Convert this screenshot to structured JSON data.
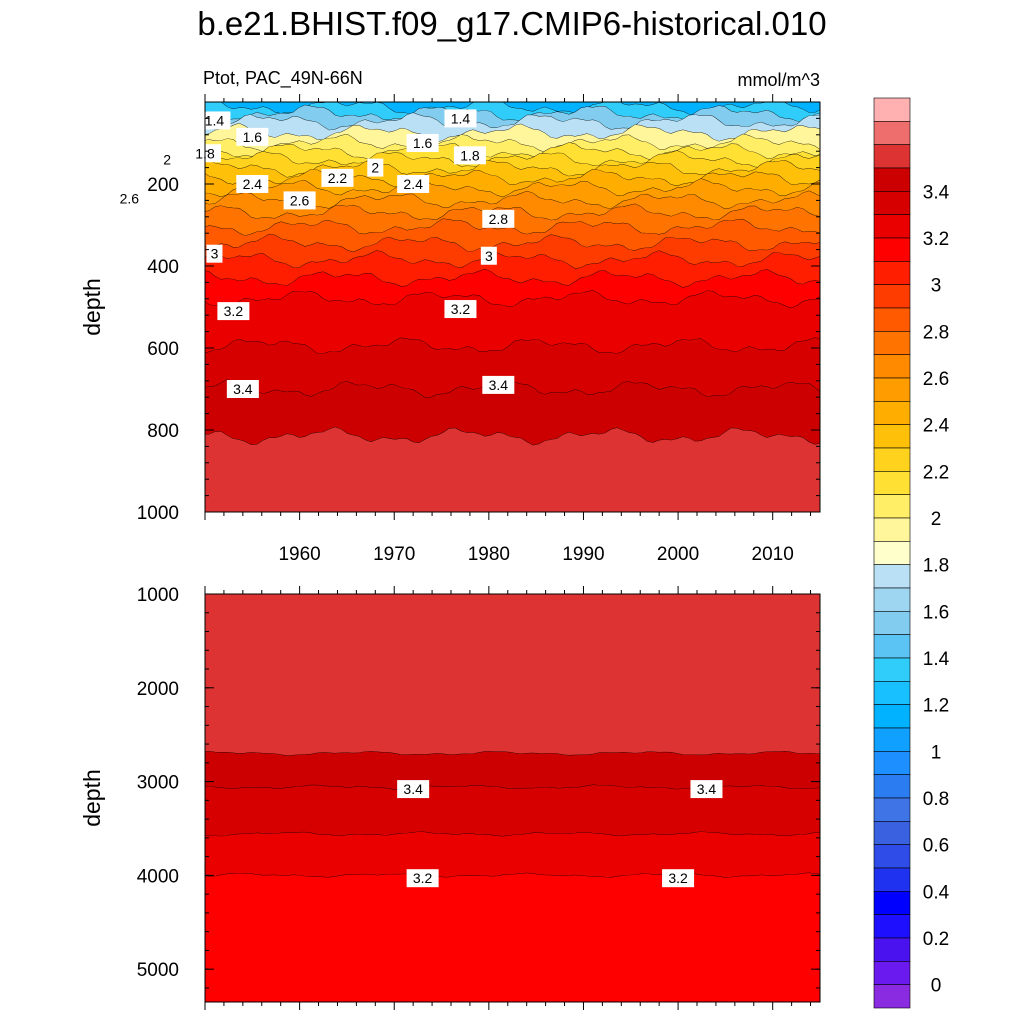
{
  "title": "b.e21.BHIST.f09_g17.CMIP6-historical.010",
  "chart_data": {
    "type": "contour",
    "left_label": "Ptot, PAC_49N-66N",
    "right_label": "mmol/m^3",
    "x_ticks": [
      "1960",
      "1970",
      "1980",
      "1990",
      "2000",
      "2010"
    ],
    "x_range": [
      1950,
      2015
    ],
    "colorbar": {
      "labels": [
        "0",
        "0.2",
        "0.4",
        "0.6",
        "0.8",
        "1",
        "1.2",
        "1.4",
        "1.6",
        "1.8",
        "2",
        "2.2",
        "2.4",
        "2.6",
        "2.8",
        "3",
        "3.2",
        "3.4"
      ],
      "levels": [
        0,
        0.1,
        0.2,
        0.3,
        0.4,
        0.5,
        0.6,
        0.7,
        0.8,
        0.9,
        1.0,
        1.1,
        1.2,
        1.3,
        1.4,
        1.5,
        1.6,
        1.7,
        1.8,
        1.9,
        2.0,
        2.1,
        2.2,
        2.3,
        2.4,
        2.5,
        2.6,
        2.7,
        2.8,
        2.9,
        3.0,
        3.1,
        3.2,
        3.3,
        3.4,
        3.5,
        3.6
      ],
      "colors": [
        "#8a2be2",
        "#6a1aee",
        "#4b12f0",
        "#1e10ff",
        "#0000ff",
        "#1e32f0",
        "#2f4be8",
        "#3a62e0",
        "#3f74e6",
        "#2b7cf0",
        "#1e8fff",
        "#10a0ff",
        "#00b2ff",
        "#18c0ff",
        "#30ccfa",
        "#5cc4f4",
        "#82cdef",
        "#9ed6f2",
        "#b9e0f4",
        "#ffffcc",
        "#fff59a",
        "#ffee66",
        "#ffe033",
        "#ffd21e",
        "#ffc00a",
        "#ffae00",
        "#ff9c00",
        "#ff8a00",
        "#ff7300",
        "#ff5a00",
        "#ff3c00",
        "#ff1e00",
        "#ff0000",
        "#eb0000",
        "#d70000",
        "#cc0000",
        "#dd3333",
        "#ee6e6e",
        "#ffb0b0"
      ]
    },
    "panels": [
      {
        "id": "upper",
        "ylabel": "depth",
        "y_range": [
          0,
          1000
        ],
        "y_ticks": [
          "200",
          "400",
          "600",
          "800",
          "1000"
        ],
        "bands": [
          {
            "top": 0,
            "bottom": 12,
            "value": 1.1
          },
          {
            "top": 12,
            "bottom": 28,
            "value": 1.3
          },
          {
            "top": 28,
            "bottom": 48,
            "value": 1.5
          },
          {
            "top": 48,
            "bottom": 75,
            "value": 1.7
          },
          {
            "top": 75,
            "bottom": 100,
            "value": 1.9
          },
          {
            "top": 100,
            "bottom": 120,
            "value": 2.0
          },
          {
            "top": 120,
            "bottom": 140,
            "value": 2.1
          },
          {
            "top": 140,
            "bottom": 162,
            "value": 2.2
          },
          {
            "top": 162,
            "bottom": 185,
            "value": 2.3
          },
          {
            "top": 185,
            "bottom": 210,
            "value": 2.4
          },
          {
            "top": 210,
            "bottom": 240,
            "value": 2.5
          },
          {
            "top": 240,
            "bottom": 270,
            "value": 2.6
          },
          {
            "top": 270,
            "bottom": 305,
            "value": 2.7
          },
          {
            "top": 305,
            "bottom": 345,
            "value": 2.8
          },
          {
            "top": 345,
            "bottom": 385,
            "value": 2.9
          },
          {
            "top": 385,
            "bottom": 430,
            "value": 3.0
          },
          {
            "top": 430,
            "bottom": 480,
            "value": 3.1
          },
          {
            "top": 480,
            "bottom": 595,
            "value": 3.2
          },
          {
            "top": 595,
            "bottom": 700,
            "value": 3.3
          },
          {
            "top": 700,
            "bottom": 815,
            "value": 3.4
          },
          {
            "top": 815,
            "bottom": 1000,
            "value": 3.5
          }
        ],
        "contour_labels": [
          {
            "text": "1.4",
            "x": 1951,
            "y": 45
          },
          {
            "text": "1.6",
            "x": 1955,
            "y": 85
          },
          {
            "text": "1.8",
            "x": 1950,
            "y": 125
          },
          {
            "text": "2",
            "x": 1946,
            "y": 140
          },
          {
            "text": "2.4",
            "x": 1955,
            "y": 200
          },
          {
            "text": "2.6",
            "x": 1942,
            "y": 235
          },
          {
            "text": "2.6",
            "x": 1960,
            "y": 240
          },
          {
            "text": "2.2",
            "x": 1964,
            "y": 185
          },
          {
            "text": "2",
            "x": 1968,
            "y": 160
          },
          {
            "text": "2.4",
            "x": 1972,
            "y": 200
          },
          {
            "text": "1.6",
            "x": 1973,
            "y": 100
          },
          {
            "text": "1.8",
            "x": 1978,
            "y": 130
          },
          {
            "text": "1.4",
            "x": 1977,
            "y": 40
          },
          {
            "text": "2.8",
            "x": 1981,
            "y": 285
          },
          {
            "text": "3",
            "x": 1951,
            "y": 370
          },
          {
            "text": "3",
            "x": 1980,
            "y": 375
          },
          {
            "text": "3.2",
            "x": 1953,
            "y": 510
          },
          {
            "text": "3.2",
            "x": 1977,
            "y": 505
          },
          {
            "text": "3.4",
            "x": 1954,
            "y": 700
          },
          {
            "text": "3.4",
            "x": 1981,
            "y": 690
          }
        ]
      },
      {
        "id": "lower",
        "ylabel": "depth",
        "y_range": [
          1000,
          5350
        ],
        "y_ticks": [
          "1000",
          "2000",
          "3000",
          "4000",
          "5000"
        ],
        "bands": [
          {
            "top": 1000,
            "bottom": 2700,
            "value": 3.5
          },
          {
            "top": 2700,
            "bottom": 3060,
            "value": 3.4
          },
          {
            "top": 3060,
            "bottom": 3560,
            "value": 3.3
          },
          {
            "top": 3560,
            "bottom": 4000,
            "value": 3.2
          },
          {
            "top": 4000,
            "bottom": 5350,
            "value": 3.1
          }
        ],
        "contour_labels": [
          {
            "text": "3.4",
            "x": 1972,
            "y": 3080
          },
          {
            "text": "3.4",
            "x": 2003,
            "y": 3080
          },
          {
            "text": "3.2",
            "x": 1973,
            "y": 4030
          },
          {
            "text": "3.2",
            "x": 2000,
            "y": 4030
          }
        ]
      }
    ]
  }
}
